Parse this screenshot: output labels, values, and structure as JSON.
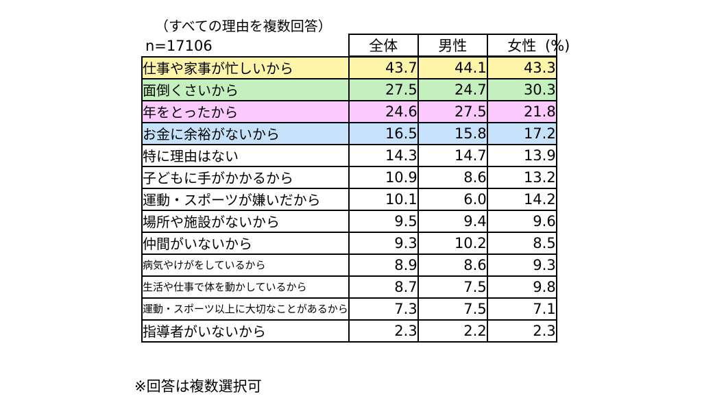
{
  "note_top": "（すべての理由を複数回答）",
  "sample_label": "n=17106",
  "unit": "(%)",
  "footnote": "※回答は複数選択可",
  "colors": {
    "yellow": "#fff5a8",
    "green": "#c4f0c0",
    "pink": "#fccaff",
    "blue": "#c6e2fa"
  },
  "chart_data": {
    "type": "table",
    "columns": [
      "全体",
      "男性",
      "女性"
    ],
    "rows": [
      {
        "label": "仕事や家事が忙しいから",
        "values": [
          "43.7",
          "44.1",
          "43.3"
        ],
        "highlight": "yellow"
      },
      {
        "label": "面倒くさいから",
        "values": [
          "27.5",
          "24.7",
          "30.3"
        ],
        "highlight": "green"
      },
      {
        "label": "年をとったから",
        "values": [
          "24.6",
          "27.5",
          "21.8"
        ],
        "highlight": "pink"
      },
      {
        "label": "お金に余裕がないから",
        "values": [
          "16.5",
          "15.8",
          "17.2"
        ],
        "highlight": "blue"
      },
      {
        "label": "特に理由はない",
        "values": [
          "14.3",
          "14.7",
          "13.9"
        ]
      },
      {
        "label": "子どもに手がかかるから",
        "values": [
          "10.9",
          "8.6",
          "13.2"
        ]
      },
      {
        "label": "運動・スポーツが嫌いだから",
        "values": [
          "10.1",
          "6.0",
          "14.2"
        ]
      },
      {
        "label": "場所や施設がないから",
        "values": [
          "9.5",
          "9.4",
          "9.6"
        ]
      },
      {
        "label": "仲間がいないから",
        "values": [
          "9.3",
          "10.2",
          "8.5"
        ]
      },
      {
        "label": "病気やけがをしているから",
        "values": [
          "8.9",
          "8.6",
          "9.3"
        ],
        "small": true
      },
      {
        "label": "生活や仕事で体を動かしているから",
        "values": [
          "8.7",
          "7.5",
          "9.8"
        ],
        "small": true
      },
      {
        "label": "運動・スポーツ以上に大切なことがあるから",
        "values": [
          "7.3",
          "7.5",
          "7.1"
        ],
        "small": true
      },
      {
        "label": "指導者がいないから",
        "values": [
          "2.3",
          "2.2",
          "2.3"
        ]
      }
    ]
  }
}
